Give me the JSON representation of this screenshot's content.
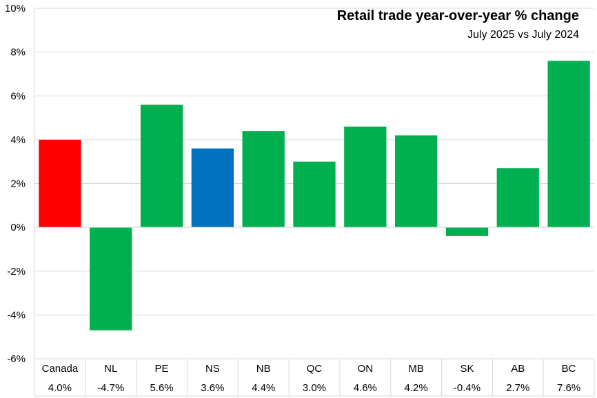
{
  "chart_data": {
    "type": "bar",
    "title": "Retail trade year-over-year % change",
    "subtitle": "July 2025 vs July 2024",
    "categories": [
      "Canada",
      "NL",
      "PE",
      "NS",
      "NB",
      "QC",
      "ON",
      "MB",
      "SK",
      "AB",
      "BC"
    ],
    "values": [
      4.0,
      -4.7,
      5.6,
      3.6,
      4.4,
      3.0,
      4.6,
      4.2,
      -0.4,
      2.7,
      7.6
    ],
    "value_labels": [
      "4.0%",
      "-4.7%",
      "5.6%",
      "3.6%",
      "4.4%",
      "3.0%",
      "4.6%",
      "4.2%",
      "-0.4%",
      "2.7%",
      "7.6%"
    ],
    "bar_colors": [
      "#ff0000",
      "#00b050",
      "#00b050",
      "#0070c0",
      "#00b050",
      "#00b050",
      "#00b050",
      "#00b050",
      "#00b050",
      "#00b050",
      "#00b050"
    ],
    "ylim": [
      -6,
      10
    ],
    "yticks": [
      10,
      8,
      6,
      4,
      2,
      0,
      -2,
      -4,
      -6
    ],
    "ytick_labels": [
      "10%",
      "8%",
      "6%",
      "4%",
      "2%",
      "0%",
      "-2%",
      "-4%",
      "-6%"
    ],
    "grid": true,
    "data_table_below": true
  }
}
